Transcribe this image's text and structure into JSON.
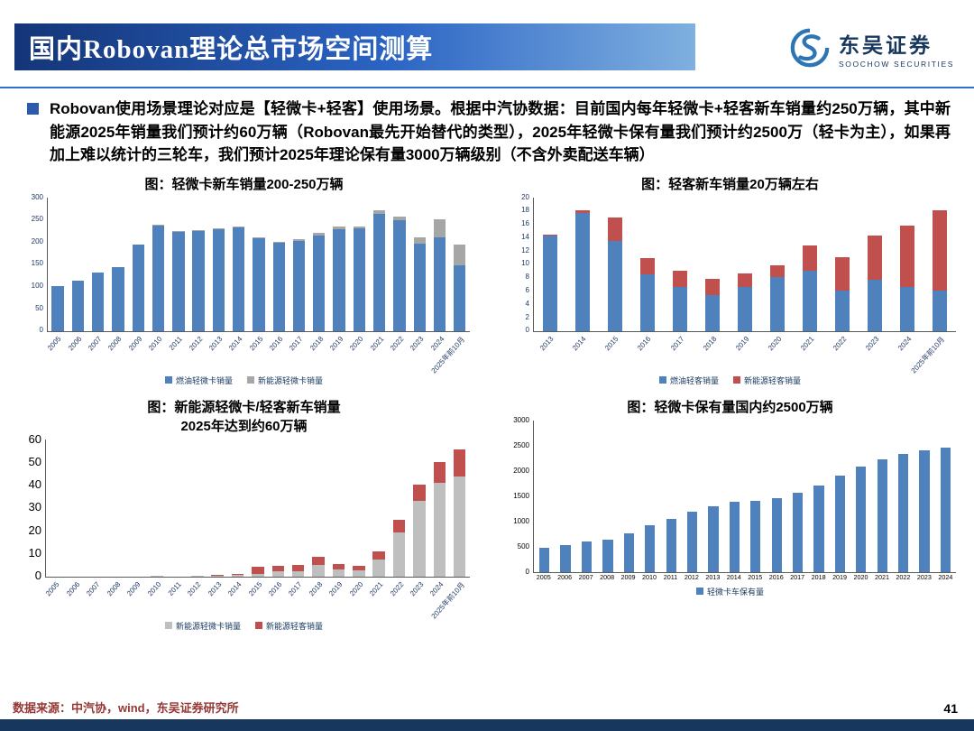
{
  "header": {
    "title": "国内Robovan理论总市场空间测算",
    "logo_cn": "东吴证券",
    "logo_en": "SOOCHOW SECURITIES"
  },
  "bullet_text": "Robovan使用场景理论对应是【轻微卡+轻客】使用场景。根据中汽协数据：目前国内每年轻微卡+轻客新车销量约250万辆，其中新能源2025年销量我们预计约60万辆（Robovan最先开始替代的类型），2025年轻微卡保有量我们预计约2500万（轻卡为主），如果再加上难以统计的三轮车，我们预计2025年理论保有量3000万辆级别（不含外卖配送车辆）",
  "footer": {
    "source": "数据来源：中汽协，wind，东吴证券研究所",
    "page": "41"
  },
  "colors": {
    "accent_blue": "#2e6fd0",
    "bar_blue": "#4f81bd",
    "bar_red": "#c0504d",
    "bar_gray_dark": "#a6a6a6",
    "bar_gray_light": "#bfbfbf",
    "footer_bar": "#17375e"
  },
  "chart_data": [
    {
      "type": "bar",
      "stacked": true,
      "title": "图：轻微卡新车销量200-250万辆",
      "categories": [
        "2005",
        "2006",
        "2007",
        "2008",
        "2009",
        "2010",
        "2011",
        "2012",
        "2013",
        "2014",
        "2015",
        "2016",
        "2017",
        "2018",
        "2019",
        "2020",
        "2021",
        "2022",
        "2023",
        "2024",
        "2025年前10月"
      ],
      "series": [
        {
          "name": "燃油轻微卡销量",
          "color": "#4f81bd",
          "values": [
            100,
            113,
            130,
            142,
            193,
            236,
            222,
            225,
            228,
            232,
            207,
            198,
            202,
            214,
            228,
            230,
            263,
            248,
            195,
            210,
            148
          ]
        },
        {
          "name": "新能源轻微卡销量",
          "color": "#a6a6a6",
          "values": [
            0,
            0,
            0,
            0,
            0,
            2,
            2,
            2,
            2,
            2,
            2,
            2,
            3,
            5,
            6,
            5,
            8,
            8,
            15,
            40,
            45
          ]
        }
      ],
      "ylim": [
        0,
        300
      ],
      "yticks": [
        0,
        50,
        100,
        150,
        200,
        250,
        300
      ],
      "legend_position": "bottom",
      "grid": false
    },
    {
      "type": "bar",
      "stacked": true,
      "title": "图：轻客新车销量20万辆左右",
      "categories": [
        "2013",
        "2014",
        "2015",
        "2016",
        "2017",
        "2018",
        "2019",
        "2020",
        "2021",
        "2022",
        "2023",
        "2024",
        "2025年前10月"
      ],
      "series": [
        {
          "name": "燃油轻客销量",
          "color": "#4f81bd",
          "values": [
            14.2,
            17.6,
            13.5,
            8.5,
            6.6,
            5.3,
            6.5,
            8.0,
            9.0,
            6.0,
            7.6,
            6.5,
            6.0
          ]
        },
        {
          "name": "新能源轻客销量",
          "color": "#c0504d",
          "values": [
            0.2,
            0.4,
            3.4,
            2.4,
            2.4,
            2.5,
            2.1,
            1.8,
            3.8,
            5.0,
            6.7,
            9.3,
            12.0
          ]
        }
      ],
      "ylim": [
        0,
        20
      ],
      "yticks": [
        0,
        2,
        4,
        6,
        8,
        10,
        12,
        14,
        16,
        18,
        20
      ],
      "legend_position": "bottom",
      "grid": false
    },
    {
      "type": "bar",
      "stacked": true,
      "title": "图：新能源轻微卡/轻客新车销量\n2025年达到约60万辆",
      "categories": [
        "2005",
        "2006",
        "2007",
        "2008",
        "2009",
        "2010",
        "2011",
        "2012",
        "2013",
        "2014",
        "2015",
        "2016",
        "2017",
        "2018",
        "2019",
        "2020",
        "2021",
        "2022",
        "2023",
        "2024",
        "2025年前10月"
      ],
      "series": [
        {
          "name": "新能源轻微卡销量",
          "color": "#bfbfbf",
          "values": [
            0,
            0,
            0,
            0,
            0,
            0.2,
            0,
            0.2,
            0.3,
            0.5,
            1.0,
            2.0,
            2.0,
            5.0,
            3.0,
            2.5,
            7.5,
            19,
            33,
            41,
            43.5
          ]
        },
        {
          "name": "新能源轻客销量",
          "color": "#c0504d",
          "values": [
            0,
            0,
            0,
            0,
            0,
            0,
            0,
            0,
            0.2,
            0.5,
            3.0,
            2.5,
            3.0,
            3.5,
            2.5,
            2.0,
            3.5,
            5.5,
            7,
            9,
            12
          ]
        }
      ],
      "ylim": [
        0,
        60
      ],
      "yticks": [
        0,
        10,
        20,
        30,
        40,
        50,
        60
      ],
      "legend_position": "bottom",
      "grid": false
    },
    {
      "type": "bar",
      "stacked": false,
      "title": "图：轻微卡保有量国内约2500万辆",
      "categories": [
        "2005",
        "2006",
        "2007",
        "2008",
        "2009",
        "2010",
        "2011",
        "2012",
        "2013",
        "2014",
        "2015",
        "2016",
        "2017",
        "2018",
        "2019",
        "2020",
        "2021",
        "2022",
        "2023",
        "2024"
      ],
      "series": [
        {
          "name": "轻微卡车保有量",
          "color": "#4f81bd",
          "values": [
            480,
            530,
            590,
            640,
            760,
            920,
            1040,
            1190,
            1300,
            1380,
            1400,
            1460,
            1560,
            1700,
            1900,
            2080,
            2230,
            2330,
            2400,
            2450
          ]
        }
      ],
      "ylim": [
        0,
        3000
      ],
      "yticks": [
        0,
        500,
        1000,
        1500,
        2000,
        2500,
        3000
      ],
      "legend_position": "bottom",
      "grid": false
    }
  ]
}
